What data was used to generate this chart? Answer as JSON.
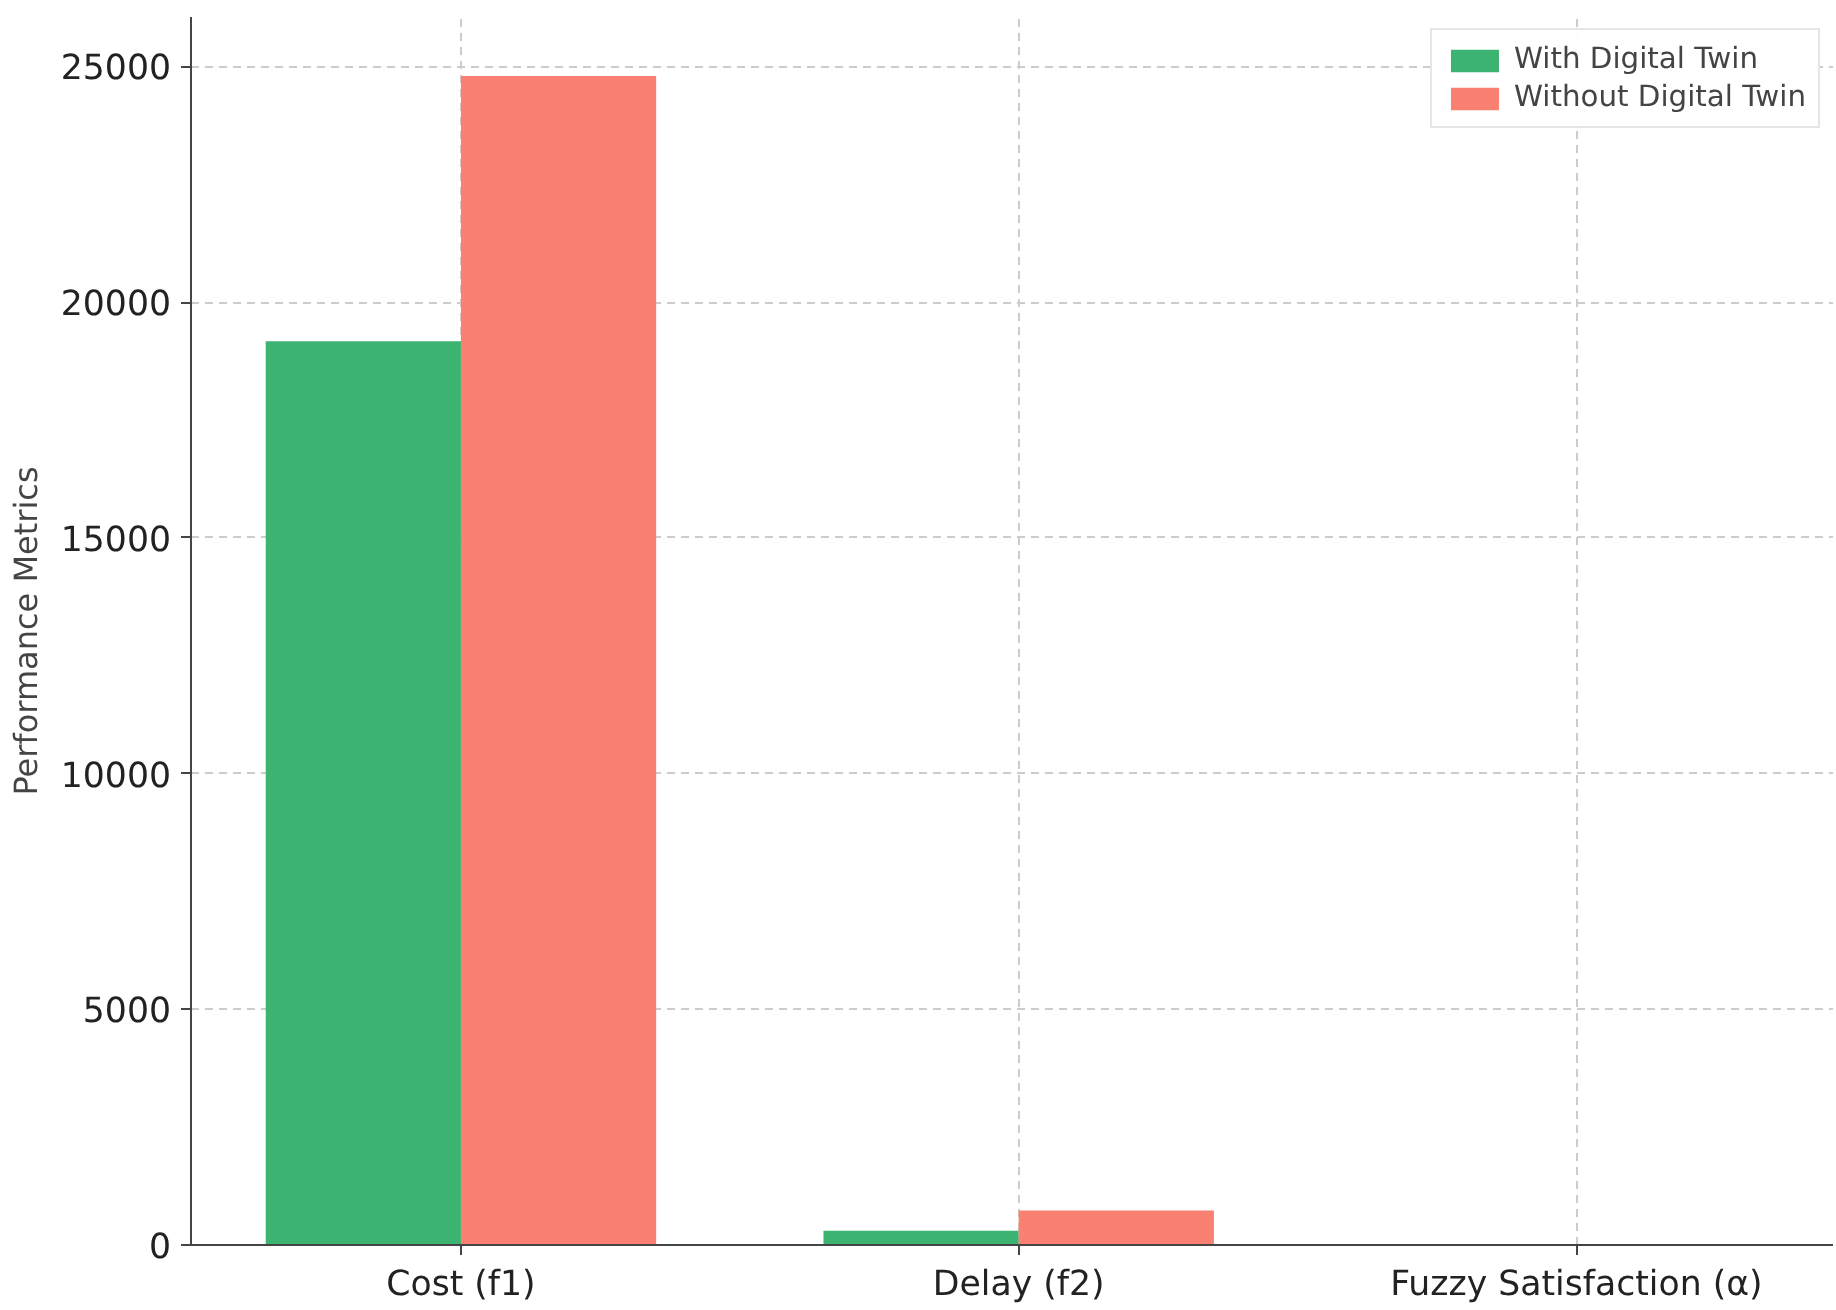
{
  "chart_data": {
    "type": "bar",
    "ylabel": "Performance Metrics",
    "categories": [
      "Cost (f1)",
      "Delay (f2)",
      "Fuzzy Satisfaction (α)"
    ],
    "series": [
      {
        "name": "With Digital Twin",
        "color": "#3cb371",
        "values": [
          19170,
          300,
          0
        ]
      },
      {
        "name": "Without Digital Twin",
        "color": "#fa8072",
        "values": [
          24800,
          730,
          0
        ]
      }
    ],
    "ylim": [
      0,
      26050
    ],
    "yticks": [
      0,
      5000,
      10000,
      15000,
      20000,
      25000
    ],
    "grid": true,
    "legend": "top right"
  }
}
